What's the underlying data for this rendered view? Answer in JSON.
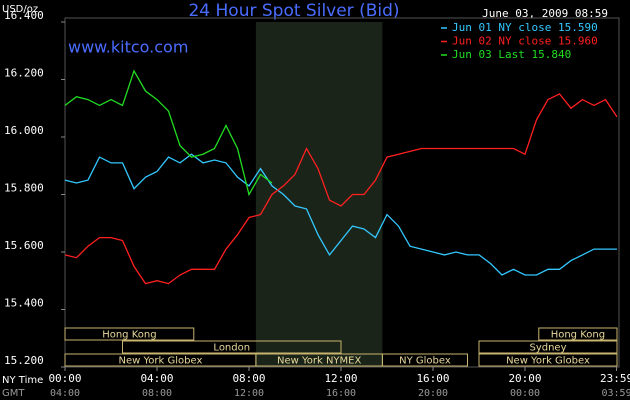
{
  "chart_data": {
    "type": "line",
    "title": "24 Hour Spot Silver (Bid)",
    "timestamp": "June 03, 2009 08:59",
    "watermark": "www.kitco.com",
    "y_label": "USD/oz",
    "x_label": "NY Time",
    "x2_label": "GMT",
    "x": [
      0,
      0.5,
      1,
      1.5,
      2,
      2.5,
      3,
      3.5,
      4,
      4.5,
      5,
      5.5,
      6,
      6.5,
      7,
      7.5,
      8,
      8.5,
      9,
      9.5,
      10,
      10.5,
      11,
      11.5,
      12,
      12.5,
      13,
      13.5,
      14,
      14.5,
      15,
      15.5,
      16,
      16.5,
      17,
      17.5,
      18,
      18.5,
      19,
      19.5,
      20,
      20.5,
      21,
      21.5,
      22,
      22.5,
      23,
      23.5,
      24
    ],
    "series": [
      {
        "name": "Jun 01 NY close 15.590",
        "color": "#33c8ff",
        "values": [
          15.85,
          15.84,
          15.85,
          15.93,
          15.91,
          15.91,
          15.82,
          15.86,
          15.88,
          15.93,
          15.91,
          15.94,
          15.91,
          15.92,
          15.91,
          15.86,
          15.83,
          15.89,
          15.83,
          15.8,
          15.76,
          15.75,
          15.66,
          15.59,
          15.64,
          15.69,
          15.68,
          15.65,
          15.73,
          15.69,
          15.62,
          15.61,
          15.6,
          15.59,
          15.6,
          15.59,
          15.59,
          15.56,
          15.52,
          15.54,
          15.52,
          15.52,
          15.54,
          15.54,
          15.57,
          15.59,
          15.61,
          15.61,
          15.61
        ]
      },
      {
        "name": "Jun 02 NY close 15.960",
        "color": "#ff2020",
        "values": [
          15.59,
          15.58,
          15.62,
          15.65,
          15.65,
          15.64,
          15.55,
          15.49,
          15.5,
          15.49,
          15.52,
          15.54,
          15.54,
          15.54,
          15.61,
          15.66,
          15.72,
          15.73,
          15.8,
          15.83,
          15.87,
          15.96,
          15.89,
          15.78,
          15.76,
          15.8,
          15.8,
          15.85,
          15.93,
          15.94,
          15.95,
          15.96,
          15.96,
          15.96,
          15.96,
          15.96,
          15.96,
          15.96,
          15.96,
          15.96,
          15.94,
          16.06,
          16.13,
          16.15,
          16.1,
          16.13,
          16.11,
          16.13,
          16.07
        ]
      },
      {
        "name": "Jun 03 Last 15.840",
        "color": "#22dd22",
        "values": [
          16.11,
          16.14,
          16.13,
          16.11,
          16.13,
          16.11,
          16.23,
          16.16,
          16.13,
          16.09,
          15.97,
          15.93,
          15.94,
          15.96,
          16.04,
          15.96,
          15.8,
          15.87,
          15.84,
          null,
          null,
          null,
          null,
          null,
          null,
          null,
          null,
          null,
          null,
          null,
          null,
          null,
          null,
          null,
          null,
          null,
          null,
          null,
          null,
          null,
          null,
          null,
          null,
          null,
          null,
          null,
          null,
          null,
          null
        ]
      }
    ],
    "xlim": [
      0,
      24
    ],
    "xticks": [
      {
        "value": 0,
        "label": "00:00"
      },
      {
        "value": 4,
        "label": "04:00"
      },
      {
        "value": 8,
        "label": "08:00"
      },
      {
        "value": 12,
        "label": "12:00"
      },
      {
        "value": 16,
        "label": "16:00"
      },
      {
        "value": 20,
        "label": "20:00"
      },
      {
        "value": 23.98,
        "label": "23:59"
      }
    ],
    "x2ticks": [
      {
        "value": 0,
        "label": "04:00"
      },
      {
        "value": 4,
        "label": "08:00"
      },
      {
        "value": 8,
        "label": "12:00"
      },
      {
        "value": 12,
        "label": "16:00"
      },
      {
        "value": 16,
        "label": "20:00"
      },
      {
        "value": 20,
        "label": "00:00"
      },
      {
        "value": 23.98,
        "label": "03:59"
      }
    ],
    "ylim": [
      15.2,
      16.4
    ],
    "yticks": [
      {
        "value": 15.2,
        "label": "15.200"
      },
      {
        "value": 15.4,
        "label": "15.400"
      },
      {
        "value": 15.6,
        "label": "15.600"
      },
      {
        "value": 15.8,
        "label": "15.800"
      },
      {
        "value": 16.0,
        "label": "16.000"
      },
      {
        "value": 16.2,
        "label": "16.200"
      },
      {
        "value": 16.4,
        "label": "16.400"
      }
    ],
    "sessions": [
      [
        {
          "name": "Hong Kong",
          "start": 0,
          "end": 5.6
        },
        {
          "name": "Hong Kong",
          "start": 20.6,
          "end": 24
        }
      ],
      [
        {
          "name": "London",
          "start": 2.5,
          "end": 12
        },
        {
          "name": "Sydney",
          "start": 18,
          "end": 24
        }
      ],
      [
        {
          "name": "New York Globex",
          "start": 0,
          "end": 8.3
        },
        {
          "name": "New York NYMEX",
          "start": 8.3,
          "end": 13.8,
          "shaded": true
        },
        {
          "name": "NY Globex",
          "start": 13.8,
          "end": 17.5
        },
        {
          "name": "New York Globex",
          "start": 18,
          "end": 24
        }
      ]
    ],
    "grid": false
  }
}
